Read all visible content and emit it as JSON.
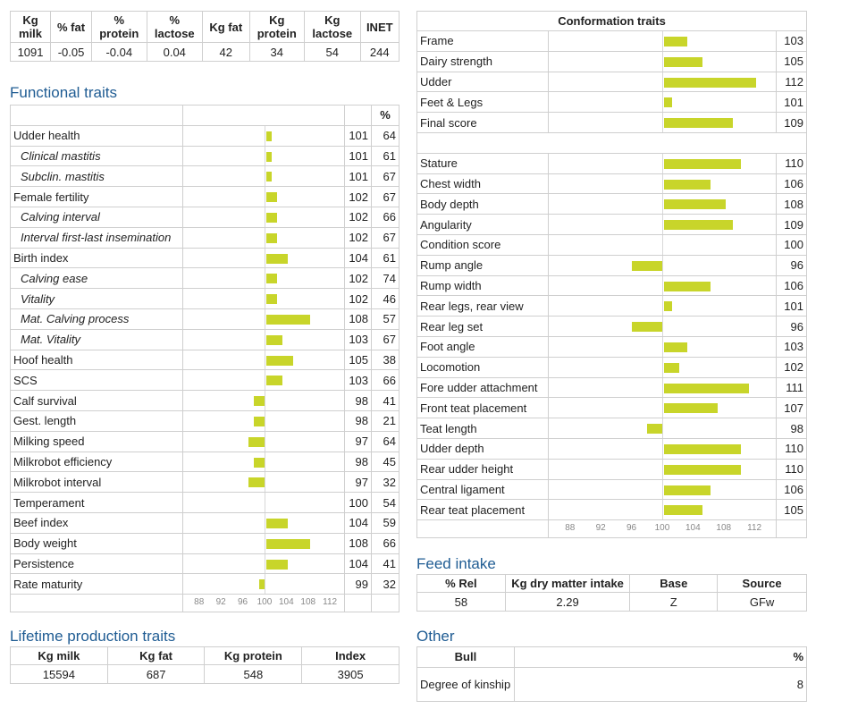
{
  "summary": {
    "headers": [
      [
        "Kg",
        "milk"
      ],
      [
        "% fat",
        ""
      ],
      [
        "%",
        "protein"
      ],
      [
        "%",
        "lactose"
      ],
      [
        "Kg fat",
        ""
      ],
      [
        "Kg",
        "protein"
      ],
      [
        "Kg",
        "lactose"
      ],
      [
        "INET",
        ""
      ]
    ],
    "values": [
      "1091",
      "-0.05",
      "-0.04",
      "0.04",
      "42",
      "34",
      "54",
      "244"
    ]
  },
  "functional": {
    "title": "Functional traits",
    "pct_header": "%",
    "rows": [
      {
        "label": "Udder health",
        "sub": false,
        "value": 101,
        "pct": "64"
      },
      {
        "label": "Clinical mastitis",
        "sub": true,
        "value": 101,
        "pct": "61"
      },
      {
        "label": "Subclin. mastitis",
        "sub": true,
        "value": 101,
        "pct": "67"
      },
      {
        "label": "Female fertility",
        "sub": false,
        "value": 102,
        "pct": "67"
      },
      {
        "label": "Calving interval",
        "sub": true,
        "value": 102,
        "pct": "66"
      },
      {
        "label": "Interval first-last insemination",
        "sub": true,
        "value": 102,
        "pct": "67"
      },
      {
        "label": "Birth index",
        "sub": false,
        "value": 104,
        "pct": "61"
      },
      {
        "label": "Calving ease",
        "sub": true,
        "value": 102,
        "pct": "74"
      },
      {
        "label": "Vitality",
        "sub": true,
        "value": 102,
        "pct": "46"
      },
      {
        "label": "Mat. Calving process",
        "sub": true,
        "value": 108,
        "pct": "57"
      },
      {
        "label": "Mat. Vitality",
        "sub": true,
        "value": 103,
        "pct": "67"
      },
      {
        "label": "Hoof health",
        "sub": false,
        "value": 105,
        "pct": "38"
      },
      {
        "label": "SCS",
        "sub": false,
        "value": 103,
        "pct": "66"
      },
      {
        "label": "Calf survival",
        "sub": false,
        "value": 98,
        "pct": "41"
      },
      {
        "label": "Gest. length",
        "sub": false,
        "value": 98,
        "pct": "21"
      },
      {
        "label": "Milking speed",
        "sub": false,
        "value": 97,
        "pct": "64"
      },
      {
        "label": "Milkrobot efficiency",
        "sub": false,
        "value": 98,
        "pct": "45"
      },
      {
        "label": "Milkrobot interval",
        "sub": false,
        "value": 97,
        "pct": "32"
      },
      {
        "label": "Temperament",
        "sub": false,
        "value": 100,
        "pct": "54"
      },
      {
        "label": "Beef index",
        "sub": false,
        "value": 104,
        "pct": "59"
      },
      {
        "label": "Body weight",
        "sub": false,
        "value": 108,
        "pct": "66"
      },
      {
        "label": "Persistence",
        "sub": false,
        "value": 104,
        "pct": "41"
      },
      {
        "label": "Rate maturity",
        "sub": false,
        "value": 99,
        "pct": "32"
      }
    ],
    "axis_ticks": [
      "88",
      "92",
      "96",
      "100",
      "104",
      "108",
      "112"
    ]
  },
  "conformation": {
    "title": "Conformation traits",
    "group1": [
      {
        "label": "Frame",
        "value": 103
      },
      {
        "label": "Dairy strength",
        "value": 105
      },
      {
        "label": "Udder",
        "value": 112
      },
      {
        "label": "Feet & Legs",
        "value": 101
      },
      {
        "label": "Final score",
        "value": 109
      }
    ],
    "group2": [
      {
        "label": "Stature",
        "value": 110
      },
      {
        "label": "Chest width",
        "value": 106
      },
      {
        "label": "Body depth",
        "value": 108
      },
      {
        "label": "Angularity",
        "value": 109
      },
      {
        "label": "Condition score",
        "value": 100
      },
      {
        "label": "Rump angle",
        "value": 96
      },
      {
        "label": "Rump width",
        "value": 106
      },
      {
        "label": "Rear legs, rear view",
        "value": 101
      },
      {
        "label": "Rear leg set",
        "value": 96
      },
      {
        "label": "Foot angle",
        "value": 103
      },
      {
        "label": "Locomotion",
        "value": 102
      },
      {
        "label": "Fore udder attachment",
        "value": 111
      },
      {
        "label": "Front teat placement",
        "value": 107
      },
      {
        "label": "Teat length",
        "value": 98
      },
      {
        "label": "Udder depth",
        "value": 110
      },
      {
        "label": "Rear udder height",
        "value": 110
      },
      {
        "label": "Central ligament",
        "value": 106
      },
      {
        "label": "Rear teat placement",
        "value": 105
      }
    ],
    "axis_ticks": [
      "88",
      "92",
      "96",
      "100",
      "104",
      "108",
      "112"
    ]
  },
  "feed": {
    "title": "Feed intake",
    "headers": [
      "% Rel",
      "Kg dry matter intake",
      "Base",
      "Source"
    ],
    "values": [
      "58",
      "2.29",
      "Z",
      "GFw"
    ]
  },
  "lifetime": {
    "title": "Lifetime production traits",
    "headers": [
      "Kg milk",
      "Kg fat",
      "Kg protein",
      "Index"
    ],
    "values": [
      "15594",
      "687",
      "548",
      "3905"
    ]
  },
  "other": {
    "title": "Other",
    "headers": [
      "Bull",
      "%"
    ],
    "row_label": "Degree of kinship",
    "row_value": "8"
  },
  "colors": {
    "bar": "#c8d52a",
    "heading": "#1f5c93",
    "border": "#cfcfcf"
  }
}
